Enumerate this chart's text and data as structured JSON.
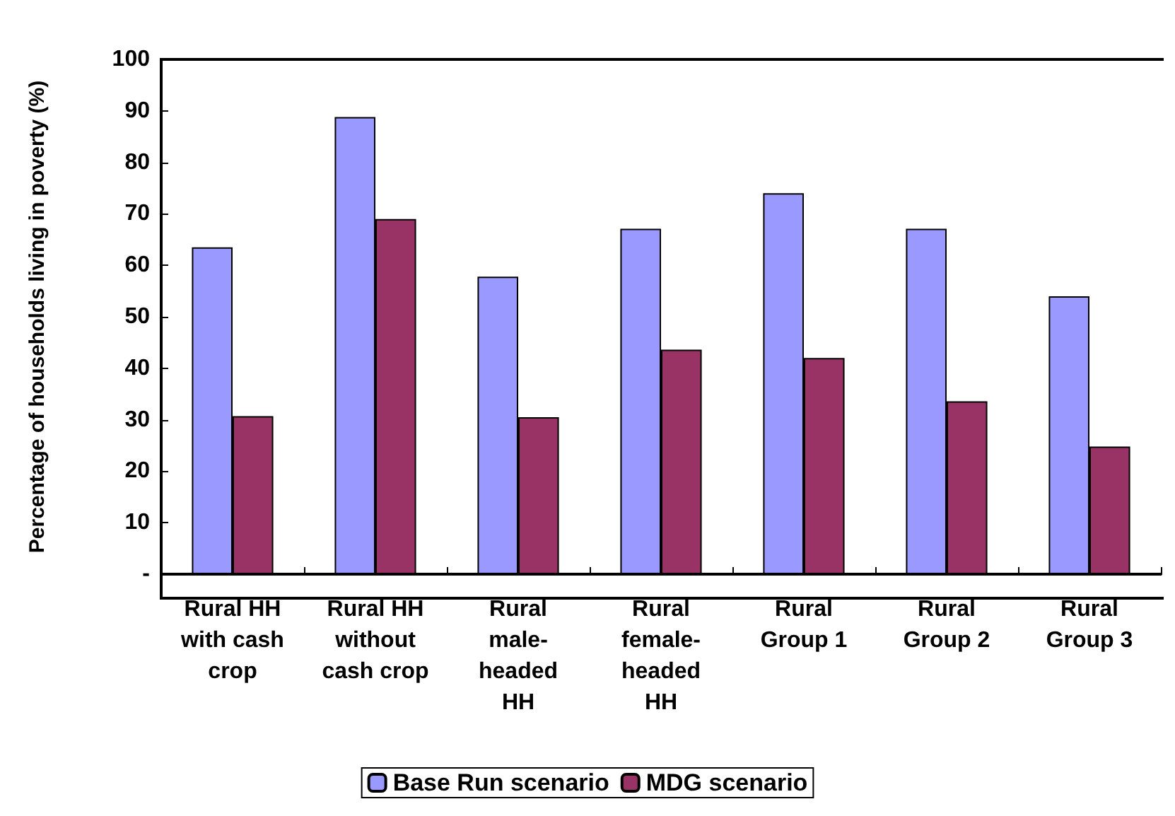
{
  "chart_data": {
    "type": "bar",
    "ylabel": "Percentage of households living in poverty (%)",
    "categories": [
      "Rural HH\nwith cash\ncrop",
      "Rural HH\nwithout\ncash crop",
      "Rural\nmale-\nheaded\nHH",
      "Rural\nfemale-\nheaded\nHH",
      "Rural\nGroup 1",
      "Rural\nGroup 2",
      "Rural\nGroup 3"
    ],
    "series": [
      {
        "name": "Base Run scenario",
        "color": "#9999ff",
        "values": [
          63.5,
          88.8,
          57.8,
          67.1,
          74,
          67.1,
          54
        ]
      },
      {
        "name": "MDG scenario",
        "color": "#993366",
        "values": [
          30.7,
          69,
          30.5,
          43.6,
          42,
          33.6,
          24.8
        ]
      }
    ],
    "ylim": [
      0,
      100
    ],
    "yticks": [
      {
        "value": 0,
        "label": "-"
      },
      10,
      20,
      30,
      40,
      50,
      60,
      70,
      80,
      90,
      100
    ],
    "grid": false,
    "legend": "bottom"
  }
}
